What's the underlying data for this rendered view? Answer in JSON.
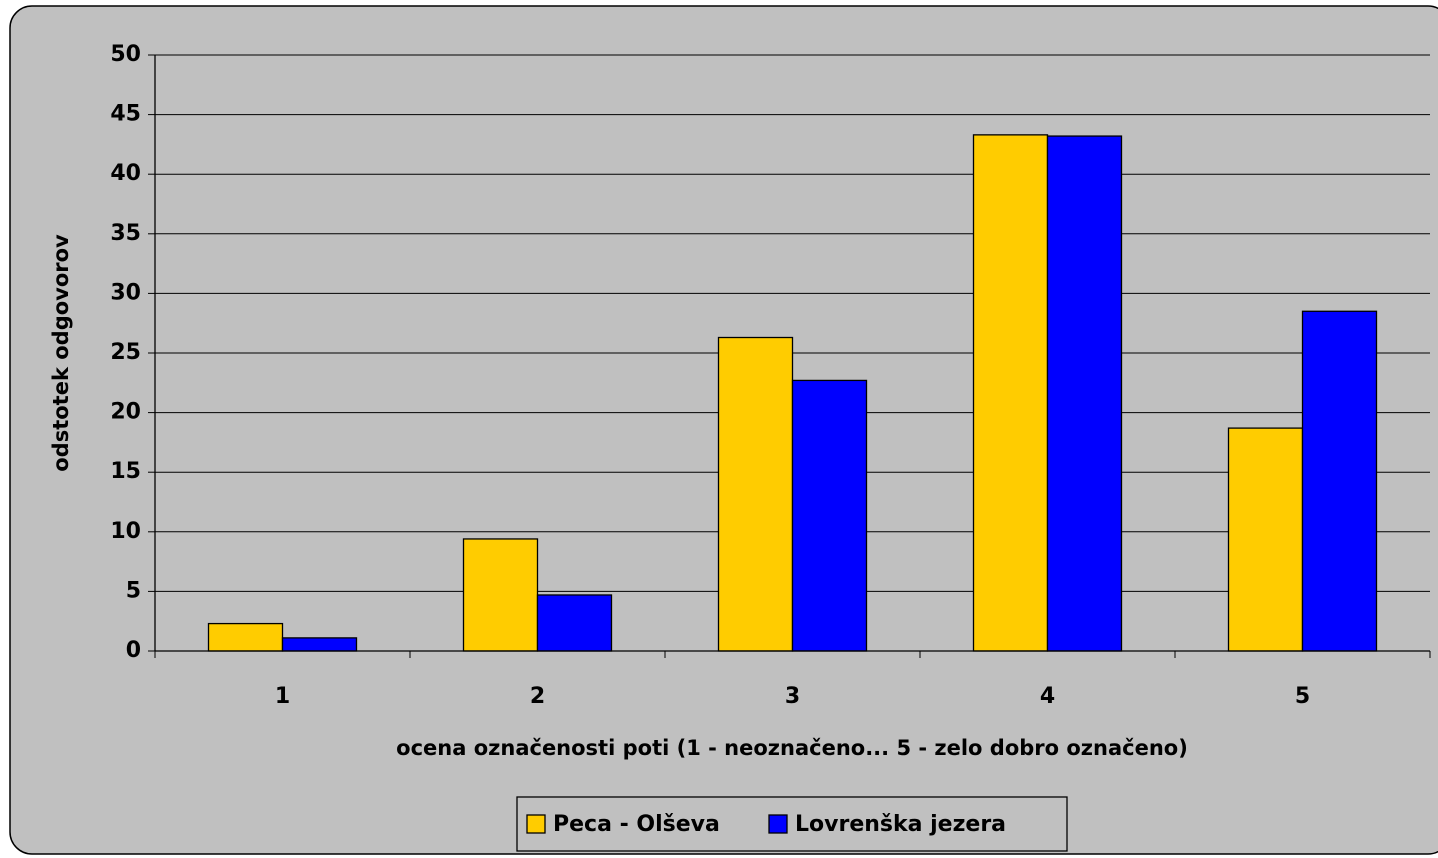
{
  "chart_data": {
    "type": "bar",
    "categories": [
      "1",
      "2",
      "3",
      "4",
      "5"
    ],
    "series": [
      {
        "name": "Peca - Olševa",
        "color": "#ffcc00",
        "values": [
          2.3,
          9.4,
          26.3,
          43.3,
          18.7
        ]
      },
      {
        "name": "Lovrenška jezera",
        "color": "#0000ff",
        "values": [
          1.1,
          4.7,
          22.7,
          43.2,
          28.5
        ]
      }
    ],
    "ylim": [
      0,
      50
    ],
    "yticks": [
      0,
      5,
      10,
      15,
      20,
      25,
      30,
      35,
      40,
      45,
      50
    ],
    "grid": true,
    "ylabel": "odstotek odgovorov",
    "xlabel": "ocena označenosti poti (1 - neoznačeno... 5 - zelo dobro označeno)",
    "legend": "bottom"
  }
}
